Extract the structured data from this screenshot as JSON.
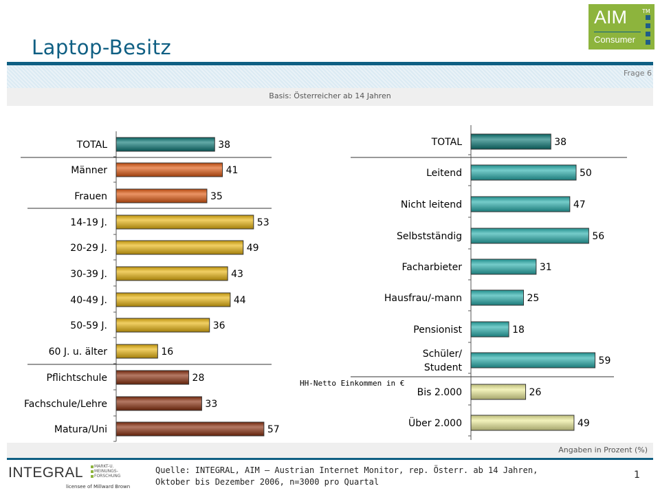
{
  "page": {
    "title": "Laptop-Besitz",
    "frage": "Frage 6",
    "basis": "Basis: Österreicher ab 14 Jahren",
    "angaben": "Angaben in Prozent (%)",
    "quelle_line1": "Quelle: INTEGRAL, AIM – Austrian Internet Monitor, rep. Österr. ab 14 Jahren,",
    "quelle_line2": "Oktober bis Dezember 2006, n=3000 pro Quartal",
    "page_number": "1"
  },
  "logo_aim": {
    "text": "AIM",
    "tm": "TM",
    "sub": "Consumer",
    "color": "#8db43d"
  },
  "logo_integral": {
    "text": "INTEGRAL",
    "sub": "MARKT-U. MEINUNGS- FORSCHUNG",
    "licensee": "licensee of Millward Brown"
  },
  "colors": {
    "total": "#0e7a78",
    "gender": "#e05a12",
    "age": "#e9b510",
    "education": "#8b3110",
    "occupation": "#2ab0ae",
    "income": "#ecec9a",
    "header_rule": "#0f5f83"
  },
  "chart_data": [
    {
      "type": "bar",
      "orientation": "horizontal",
      "xlim": [
        0,
        100
      ],
      "categories": [
        "TOTAL",
        "Männer",
        "Frauen",
        "14-19 J.",
        "20-29 J.",
        "30-39 J.",
        "40-49 J.",
        "50-59 J.",
        "60 J. u. älter",
        "Pflichtschule",
        "Fachschule/Lehre",
        "Matura/Uni"
      ],
      "values": [
        38,
        41,
        35,
        53,
        49,
        43,
        44,
        36,
        16,
        28,
        33,
        57
      ],
      "groups": [
        "total",
        "gender",
        "gender",
        "age",
        "age",
        "age",
        "age",
        "age",
        "age",
        "education",
        "education",
        "education"
      ]
    },
    {
      "type": "bar",
      "orientation": "horizontal",
      "xlim": [
        0,
        100
      ],
      "categories": [
        "TOTAL",
        "Leitend",
        "Nicht leitend",
        "Selbstständig",
        "Facharbieter",
        "Hausfrau/-mann",
        "Pensionist",
        "Schüler/\nStudent",
        "Bis 2.000",
        "Über 2.000"
      ],
      "values": [
        38,
        50,
        47,
        56,
        31,
        25,
        18,
        59,
        26,
        49
      ],
      "groups": [
        "total",
        "occupation",
        "occupation",
        "occupation",
        "occupation",
        "occupation",
        "occupation",
        "occupation",
        "income",
        "income"
      ],
      "annotations": [
        "HH-Netto Einkommen in €"
      ]
    }
  ]
}
